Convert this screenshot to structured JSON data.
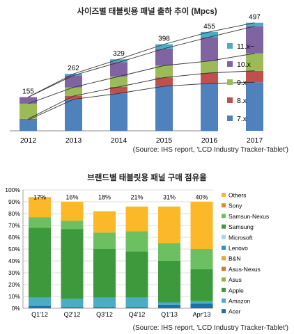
{
  "colors": {
    "c1_7x": "#4F81BD",
    "c1_8x": "#C0504D",
    "c1_9x": "#9BBB59",
    "c1_10x": "#8064A2",
    "c1_11x": "#4BACC6",
    "acer": "#1F6FA8",
    "amazon": "#4BACC6",
    "apple": "#3C9A3C",
    "asus": "#8CB74A",
    "asus_nexus": "#D07A2A",
    "bn": "#E8A33C",
    "lenovo": "#2E8FCF",
    "microsoft": "#A6D4EE",
    "samsung": "#3C9A3C",
    "samsun_nexus": "#6DC062",
    "sony": "#E6892C",
    "others": "#FBB828"
  },
  "chart1": {
    "title": "사이즈별 태블릿용 패널 출하 추이 (Mpcs)",
    "source": "(Source: IHS report, 'LCD Industry Tracker-Tablet')"
  },
  "chart2": {
    "title": "브랜드별 태블릿용 패널 구매 점유율",
    "source": "(Source: IHS report, 'LCD Industry Tracker-Tablet')"
  },
  "chart_data": [
    {
      "type": "bar",
      "stacked": true,
      "title": "사이즈별 태블릿용 패널 출하 추이 (Mpcs)",
      "categories": [
        "2012",
        "2013",
        "2014",
        "2015",
        "2016",
        "2017"
      ],
      "totals": [
        155,
        262,
        329,
        398,
        455,
        497
      ],
      "series": [
        {
          "name": "7.x",
          "values": [
            50,
            145,
            172,
            205,
            218,
            223
          ]
        },
        {
          "name": "8.x",
          "values": [
            5,
            15,
            30,
            40,
            48,
            53
          ]
        },
        {
          "name": "9.x",
          "values": [
            70,
            40,
            48,
            55,
            55,
            80
          ]
        },
        {
          "name": "10.x",
          "values": [
            30,
            55,
            65,
            78,
            110,
            125
          ]
        },
        {
          "name": "11.x~",
          "values": [
            0,
            7,
            14,
            20,
            24,
            16
          ]
        }
      ],
      "legend": "right",
      "grid": false
    },
    {
      "type": "bar",
      "stacked": true,
      "percent": true,
      "title": "브랜드별 태블릿용 패널 구매 점유율",
      "categories": [
        "Q1'12",
        "Q2'12",
        "Q3'12",
        "Q4'12",
        "Q1'13",
        "Apr'13"
      ],
      "ylim": [
        0,
        100
      ],
      "yticks": [
        "0%",
        "10%",
        "20%",
        "30%",
        "40%",
        "50%",
        "60%",
        "70%",
        "80%",
        "90%",
        "100%"
      ],
      "series": [
        {
          "name": "Acer",
          "values": [
            2,
            1,
            1,
            1,
            3,
            4
          ]
        },
        {
          "name": "Amazon",
          "values": [
            7,
            7,
            8,
            8,
            2,
            2
          ]
        },
        {
          "name": "Apple",
          "values": [
            0,
            0,
            0,
            0,
            0,
            0
          ]
        },
        {
          "name": "Asus",
          "values": [
            0,
            0,
            0,
            0,
            0,
            0
          ]
        },
        {
          "name": "Asus-Nexus",
          "values": [
            0,
            0,
            0,
            0,
            0,
            0
          ]
        },
        {
          "name": "B&N",
          "values": [
            0,
            0,
            0,
            0,
            0,
            0
          ]
        },
        {
          "name": "Lenovo",
          "values": [
            0,
            0,
            0,
            0,
            0,
            0
          ]
        },
        {
          "name": "Microsoft",
          "values": [
            0,
            0,
            0,
            0,
            0,
            0
          ]
        },
        {
          "name": "Samsung",
          "values": [
            59,
            59,
            41,
            39,
            35,
            27
          ]
        },
        {
          "name": "Samsun-Nexus",
          "values": [
            9,
            7,
            14,
            17,
            15,
            17
          ]
        },
        {
          "name": "Sony",
          "values": [
            0,
            0,
            0,
            0,
            0,
            0
          ]
        },
        {
          "name": "Others",
          "values": [
            17,
            16,
            18,
            21,
            31,
            40
          ]
        }
      ],
      "data_labels": [
        "17%",
        "16%",
        "18%",
        "21%",
        "31%",
        "40%"
      ],
      "legend": "right",
      "grid": true
    }
  ]
}
